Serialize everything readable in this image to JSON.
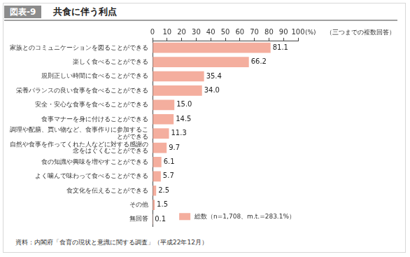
{
  "chart_data": {
    "type": "bar",
    "orientation": "horizontal",
    "title": "共食に伴う利点",
    "figure_number": "図表-9",
    "note": "（三つまでの複数回答）",
    "xlabel": "(%)",
    "source": "資料：内閣府「食育の現状と意識に関する調査」（平成22年12月）",
    "categories": [
      "家族とのコミュニケーションを図ることができる",
      "楽しく食べることができる",
      "規則正しい時間に食べることができる",
      "栄養バランスの良い食事を食べることができる",
      "安全・安心な食事を食べることができる",
      "食事マナーを身に付けることができる",
      "調理や配膳、買い物など、食事作りに参加することができる",
      "自然や食事を作ってくれた人などに対する感謝の念をはぐくむことができる",
      "食の知識や興味を増やすことができる",
      "よく噛んで味わって食べることができる",
      "食文化を伝えることができる",
      "その他",
      "無回答"
    ],
    "series": [
      {
        "name": "総数（n=1,708、m.t.=283.1%）",
        "color": "#f4ae9e",
        "values": [
          81.1,
          66.2,
          35.4,
          34.0,
          15.0,
          14.5,
          11.3,
          9.7,
          6.1,
          5.7,
          2.5,
          1.5,
          0.1
        ],
        "value_labels": [
          "81.1",
          "66.2",
          "35.4",
          "34.0",
          "15.0",
          "14.5",
          "11.3",
          "9.7",
          "6.1",
          "5.7",
          "2.5",
          "1.5",
          "0.1"
        ]
      }
    ],
    "xlim": [
      0,
      100
    ],
    "xticks": [
      0,
      10,
      20,
      30,
      40,
      50,
      60,
      70,
      80,
      90,
      100
    ],
    "grid": false,
    "legend": "lower right",
    "data_labels": true
  }
}
